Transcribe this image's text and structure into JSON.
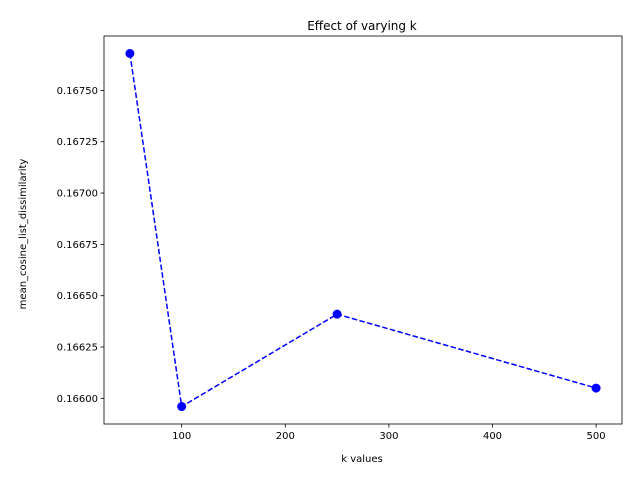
{
  "chart_data": {
    "type": "line",
    "title": "Effect of varying k",
    "xlabel": "k values",
    "ylabel": "mean_cosine_list_dissimilarity",
    "series": [
      {
        "x": [
          50,
          100,
          250,
          500
        ],
        "y": [
          0.16768,
          0.16596,
          0.16641,
          0.16605
        ],
        "color": "#0000ff",
        "line_style": "dashed",
        "marker": "circle"
      }
    ],
    "xlim": [
      25,
      525
    ],
    "ylim": [
      0.165875,
      0.167765
    ],
    "x_ticks": [
      100,
      200,
      300,
      400,
      500
    ],
    "x_tick_labels": [
      "100",
      "200",
      "300",
      "400",
      "500"
    ],
    "y_ticks": [
      0.166,
      0.16625,
      0.1665,
      0.16675,
      0.167,
      0.16725,
      0.1675
    ],
    "y_tick_labels": [
      "0.16600",
      "0.16625",
      "0.16650",
      "0.16675",
      "0.16700",
      "0.16725",
      "0.16750"
    ],
    "grid": false,
    "legend": false
  }
}
